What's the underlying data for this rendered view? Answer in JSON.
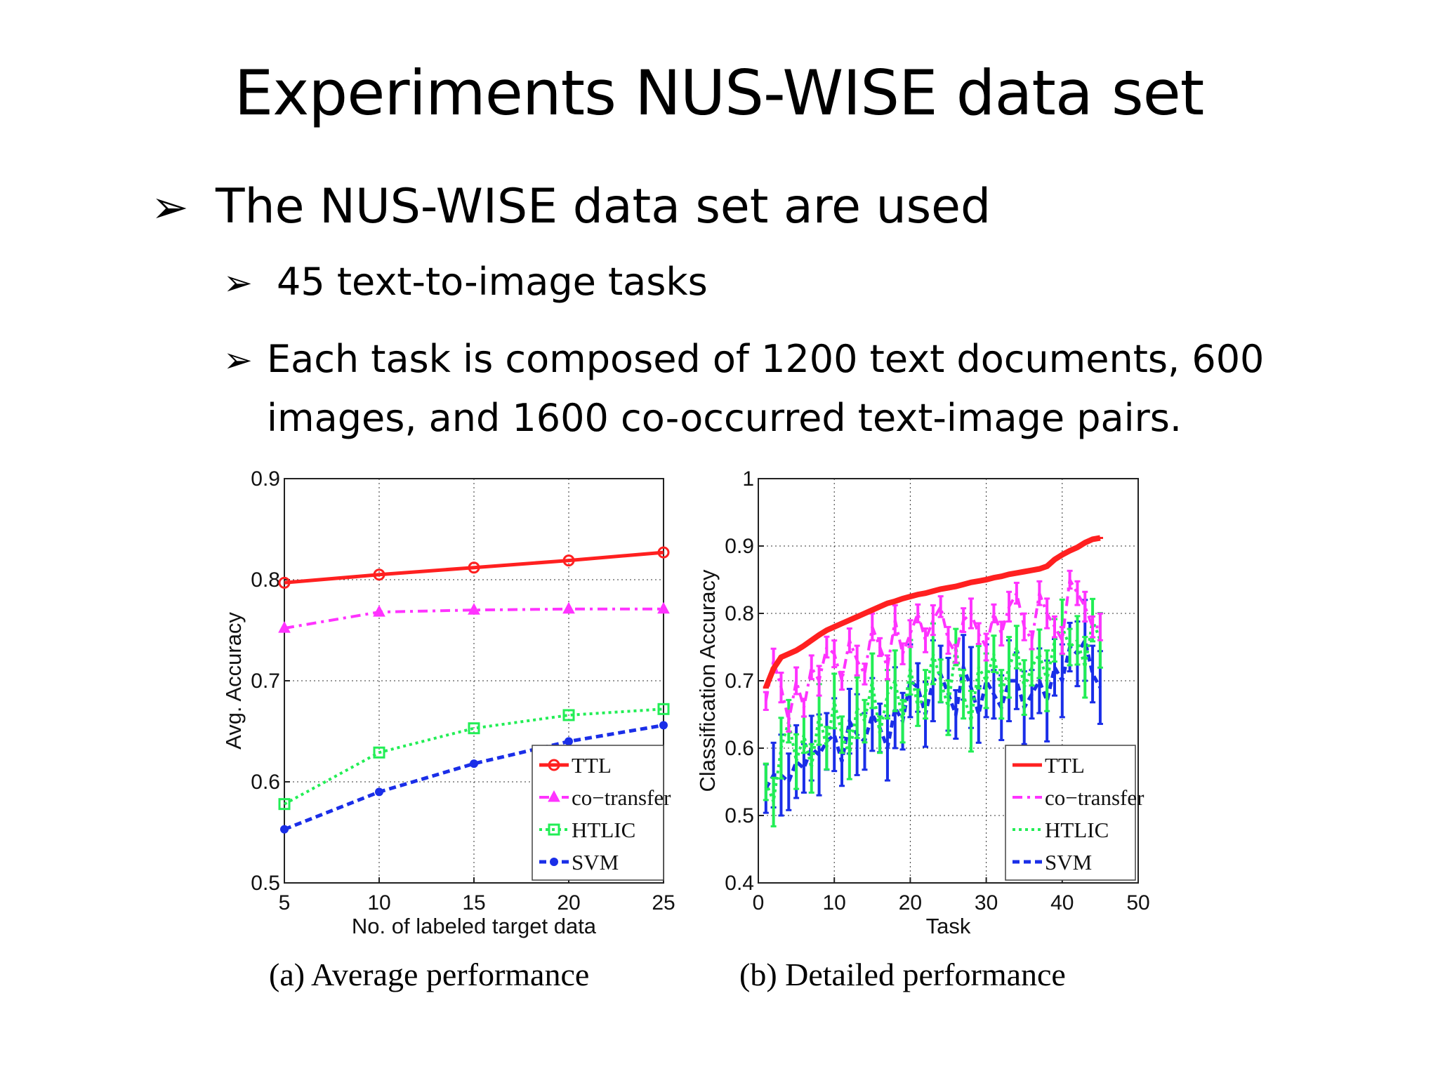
{
  "slide": {
    "title": "Experiments NUS-WISE data set",
    "bullets": [
      {
        "text": "The NUS-WISE data set are used"
      },
      {
        "text": "45 text-to-image tasks"
      },
      {
        "lines": [
          "Each task is composed of 1200 text documents, 600",
          "images, and 1600 co-occurred text-image pairs."
        ]
      }
    ],
    "bullet_glyph": "➢"
  },
  "chart_data": [
    {
      "type": "line",
      "caption": "(a)  Average performance",
      "xlabel": "No. of labeled target data",
      "ylabel": "Avg. Accuracy",
      "xlim": [
        5,
        25
      ],
      "ylim": [
        0.5,
        0.9
      ],
      "x_ticks": [
        "5",
        "10",
        "15",
        "20",
        "25"
      ],
      "y_ticks": [
        "0.5",
        "0.6",
        "0.7",
        "0.8",
        "0.9"
      ],
      "grid": true,
      "legend_position": "bottom-right",
      "x": [
        5,
        10,
        15,
        20,
        25
      ],
      "series": [
        {
          "name": "TTL",
          "values": [
            0.797,
            0.805,
            0.812,
            0.819,
            0.827
          ],
          "color": "#ff2020",
          "marker": "circle"
        },
        {
          "name": "co−transfer",
          "values": [
            0.752,
            0.768,
            0.77,
            0.771,
            0.771
          ],
          "color": "#ff33ff",
          "marker": "triangle"
        },
        {
          "name": "HTLIC",
          "values": [
            0.578,
            0.629,
            0.653,
            0.666,
            0.672
          ],
          "color": "#22ee55",
          "marker": "square"
        },
        {
          "name": "SVM",
          "values": [
            0.553,
            0.59,
            0.618,
            0.64,
            0.656
          ],
          "color": "#1a2ee8",
          "marker": "dot"
        }
      ]
    },
    {
      "type": "line",
      "caption": "(b)  Detailed performance",
      "xlabel": "Task",
      "ylabel": "Classification Accuracy",
      "xlim": [
        0,
        50
      ],
      "ylim": [
        0.4,
        1.0
      ],
      "x_ticks": [
        "0",
        "10",
        "20",
        "30",
        "40",
        "50"
      ],
      "y_ticks": [
        "0.4",
        "0.5",
        "0.6",
        "0.7",
        "0.8",
        "0.9",
        "1"
      ],
      "grid": true,
      "legend_position": "bottom-right",
      "x": [
        1,
        2,
        3,
        4,
        5,
        6,
        7,
        8,
        9,
        10,
        11,
        12,
        13,
        14,
        15,
        16,
        17,
        18,
        19,
        20,
        21,
        22,
        23,
        24,
        25,
        26,
        27,
        28,
        29,
        30,
        31,
        32,
        33,
        34,
        35,
        36,
        37,
        38,
        39,
        40,
        41,
        42,
        43,
        44,
        45
      ],
      "series": [
        {
          "name": "TTL",
          "color": "#ff2020",
          "values": [
            0.69,
            0.718,
            0.735,
            0.74,
            0.745,
            0.752,
            0.76,
            0.768,
            0.775,
            0.78,
            0.785,
            0.79,
            0.795,
            0.8,
            0.805,
            0.81,
            0.815,
            0.818,
            0.822,
            0.825,
            0.828,
            0.83,
            0.833,
            0.836,
            0.838,
            0.84,
            0.843,
            0.846,
            0.848,
            0.85,
            0.853,
            0.855,
            0.858,
            0.86,
            0.862,
            0.864,
            0.866,
            0.87,
            0.88,
            0.887,
            0.893,
            0.898,
            0.905,
            0.91,
            0.912
          ]
        },
        {
          "name": "co−transfer",
          "color": "#ff33ff",
          "values": [
            0.67,
            0.73,
            0.69,
            0.64,
            0.7,
            0.66,
            0.72,
            0.7,
            0.75,
            0.74,
            0.7,
            0.76,
            0.73,
            0.71,
            0.78,
            0.75,
            0.72,
            0.79,
            0.74,
            0.77,
            0.8,
            0.76,
            0.79,
            0.81,
            0.76,
            0.74,
            0.79,
            0.8,
            0.77,
            0.75,
            0.8,
            0.77,
            0.81,
            0.83,
            0.78,
            0.76,
            0.83,
            0.8,
            0.78,
            0.76,
            0.85,
            0.83,
            0.81,
            0.78,
            0.78
          ]
        },
        {
          "name": "HTLIC",
          "color": "#22ee55",
          "values": [
            0.55,
            0.52,
            0.6,
            0.64,
            0.58,
            0.62,
            0.57,
            0.65,
            0.6,
            0.67,
            0.62,
            0.59,
            0.66,
            0.64,
            0.7,
            0.62,
            0.68,
            0.7,
            0.64,
            0.72,
            0.66,
            0.68,
            0.74,
            0.7,
            0.66,
            0.75,
            0.68,
            0.64,
            0.72,
            0.7,
            0.74,
            0.68,
            0.72,
            0.75,
            0.69,
            0.72,
            0.74,
            0.7,
            0.76,
            0.78,
            0.75,
            0.76,
            0.72,
            0.79,
            0.76
          ]
        },
        {
          "name": "SVM",
          "color": "#1a2ee8",
          "values": [
            0.54,
            0.56,
            0.56,
            0.55,
            0.58,
            0.57,
            0.6,
            0.59,
            0.61,
            0.62,
            0.58,
            0.64,
            0.62,
            0.61,
            0.65,
            0.63,
            0.6,
            0.66,
            0.64,
            0.7,
            0.69,
            0.65,
            0.7,
            0.71,
            0.68,
            0.65,
            0.72,
            0.69,
            0.65,
            0.7,
            0.68,
            0.66,
            0.7,
            0.7,
            0.66,
            0.68,
            0.7,
            0.67,
            0.72,
            0.7,
            0.75,
            0.74,
            0.76,
            0.71,
            0.69
          ]
        }
      ]
    }
  ]
}
